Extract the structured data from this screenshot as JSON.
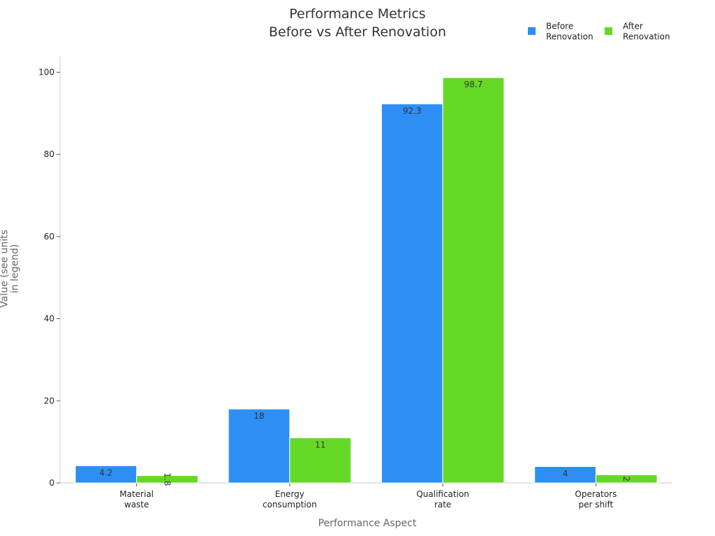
{
  "chart_data": {
    "type": "bar",
    "title": "Performance Metrics\nBefore vs After Renovation",
    "x_label": "Performance Aspect",
    "y_label": "Value (see units\nin legend)",
    "categories": [
      "Material\nwaste",
      "Energy\nconsumption",
      "Qualification\nrate",
      "Operators\nper shift"
    ],
    "series": [
      {
        "name": "Before\nRenovation",
        "color": "#2d8ff5",
        "values": [
          4.2,
          18,
          92.3,
          4
        ]
      },
      {
        "name": "After\nRenovation",
        "color": "#66d926",
        "values": [
          1.8,
          11,
          98.7,
          2
        ]
      }
    ],
    "ylim": [
      0,
      104
    ],
    "yticks": [
      0,
      20,
      40,
      60,
      80,
      100
    ],
    "grid": false,
    "legend": "upper right"
  }
}
